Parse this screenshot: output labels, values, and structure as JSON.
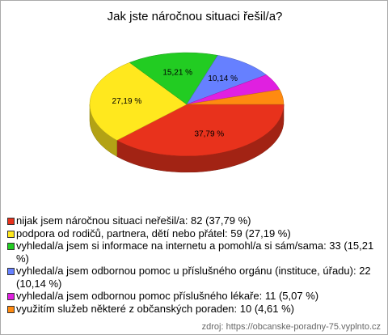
{
  "chart_data": {
    "type": "pie3d",
    "title": "Jak jste náročnou situaci řešil/a?",
    "categories": [
      "nijak jsem náročnou situaci neřešil/a: 82 (37,79 %)",
      "podpora od rodičů, partnera, dětí nebo přátel: 59 (27,19 %)",
      "vyhledal/a jsem si informace na internetu a pomohl/a si sám/sama: 33 (15,21 %)",
      "vyhledal/a jsem odbornou pomoc u příslušného orgánu (instituce, úřadu): 22 (10,14 %)",
      "vyhledal/a jsem odbornou pomoc příslušného lékaře: 11 (5,07 %)",
      "využitím služeb některé z občanských poraden: 10 (4,61 %)"
    ],
    "values": [
      37.79,
      27.19,
      15.21,
      10.14,
      5.07,
      4.61
    ],
    "value_labels": [
      "37,79 %",
      "27,19 %",
      "15,21 %",
      "10,14 %",
      null,
      null
    ],
    "colors": [
      "#e8321c",
      "#ffe81e",
      "#22cc22",
      "#6680ff",
      "#e020e0",
      "#ff8a10"
    ],
    "source": "zdroj: https://obcanske-poradny-75.vyplnto.cz"
  }
}
